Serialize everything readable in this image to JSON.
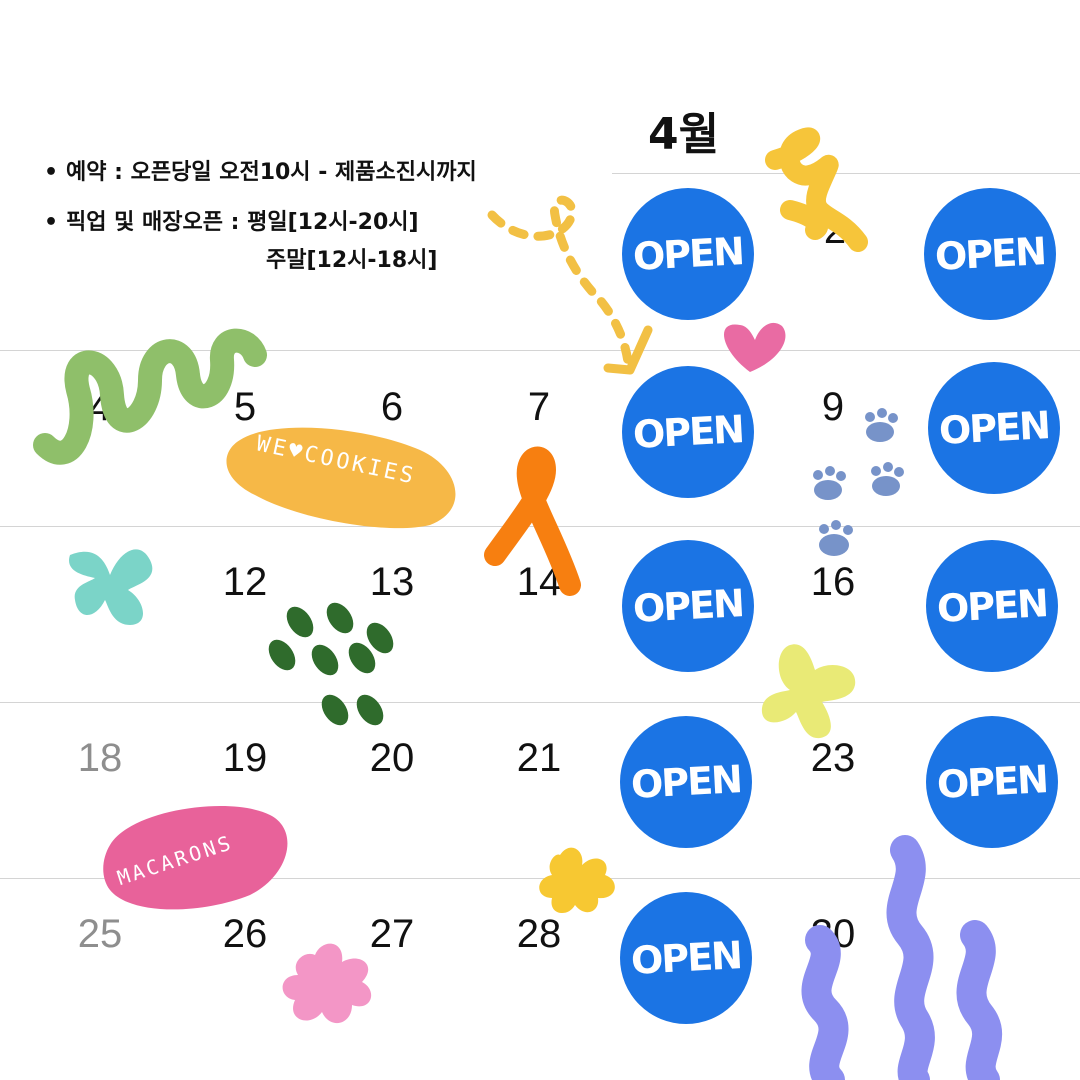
{
  "calendar": {
    "month_title": "4월",
    "info": {
      "reservation": "예약 : 오픈당일 오전10시 - 제품소진시까지",
      "pickup_weekday": "픽업 및 매장오픈 : 평일[12시-20시]",
      "pickup_weekend": "주말[12시-18시]",
      "bullet": "•"
    },
    "open_label": "OPEN",
    "days": {
      "d2": "2",
      "d4": "4",
      "d5": "5",
      "d6": "6",
      "d7": "7",
      "d9": "9",
      "d12": "12",
      "d13": "13",
      "d14": "14",
      "d16": "16",
      "d18": "18",
      "d19": "19",
      "d20": "20",
      "d21": "21",
      "d23": "23",
      "d25": "25",
      "d26": "26",
      "d27": "27",
      "d28": "28",
      "d30": "30"
    }
  },
  "stickers": {
    "cookies": "WE♥COOKIES",
    "macarons": "MACARONS"
  },
  "colors": {
    "open_blue": "#1b74e4",
    "divider": "#d4d4d4",
    "muted_text": "#8e8e8e"
  }
}
